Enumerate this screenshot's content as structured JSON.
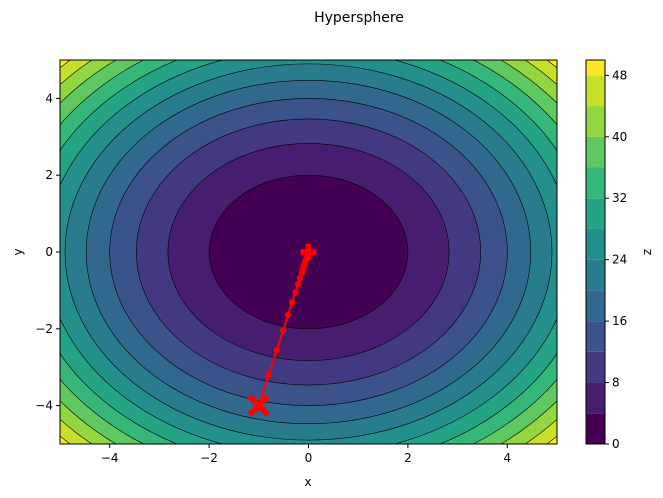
{
  "chart_data": {
    "type": "contour",
    "title": "Hypersphere",
    "xlabel": "x",
    "ylabel": "y",
    "colorbar_label": "z",
    "xlim": [
      -5,
      5
    ],
    "ylim": [
      -5,
      5
    ],
    "x_ticks": [
      -4,
      -2,
      0,
      2,
      4
    ],
    "y_ticks": [
      -4,
      -2,
      0,
      2,
      4
    ],
    "x_tick_labels": [
      "−4",
      "−2",
      "0",
      "2",
      "4"
    ],
    "y_tick_labels": [
      "−4",
      "−2",
      "0",
      "2",
      "4"
    ],
    "colorbar_ticks": [
      0,
      8,
      16,
      24,
      32,
      40,
      48
    ],
    "colorbar_tick_labels": [
      "0",
      "8",
      "16",
      "24",
      "32",
      "40",
      "48"
    ],
    "contour_levels": [
      0,
      4,
      8,
      12,
      16,
      20,
      24,
      28,
      32,
      36,
      40,
      44,
      48,
      50
    ],
    "colormap": "viridis",
    "function": "z = x^2 + y^2",
    "path_color": "#ff0000",
    "path": [
      {
        "x": -1.0,
        "y": -4.0
      },
      {
        "x": -0.8,
        "y": -3.2
      },
      {
        "x": -0.64,
        "y": -2.56
      },
      {
        "x": -0.51,
        "y": -2.05
      },
      {
        "x": -0.41,
        "y": -1.64
      },
      {
        "x": -0.33,
        "y": -1.31
      },
      {
        "x": -0.26,
        "y": -1.05
      },
      {
        "x": -0.21,
        "y": -0.84
      },
      {
        "x": -0.17,
        "y": -0.67
      },
      {
        "x": -0.13,
        "y": -0.54
      },
      {
        "x": -0.11,
        "y": -0.43
      },
      {
        "x": -0.09,
        "y": -0.34
      },
      {
        "x": -0.07,
        "y": -0.27
      },
      {
        "x": -0.05,
        "y": -0.22
      },
      {
        "x": -0.04,
        "y": -0.18
      },
      {
        "x": -0.03,
        "y": -0.14
      },
      {
        "x": -0.02,
        "y": -0.1
      },
      {
        "x": 0.0,
        "y": 0.0
      }
    ],
    "start_marker": {
      "x": -1.0,
      "y": -4.0,
      "shape": "X"
    },
    "end_marker": {
      "x": 0.0,
      "y": 0.0,
      "shape": "plus"
    }
  }
}
